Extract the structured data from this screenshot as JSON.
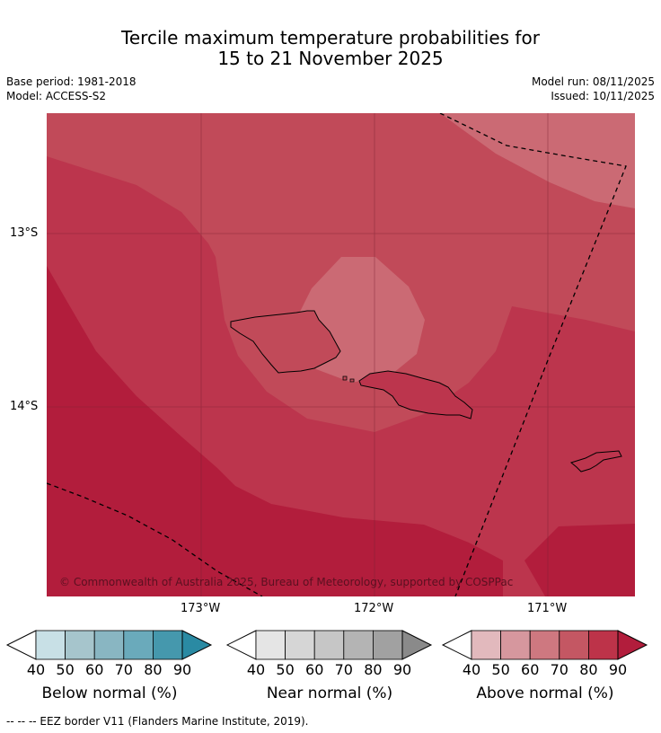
{
  "title_line1": "Tercile maximum temperature probabilities for",
  "title_line2": "15 to 21 November 2025",
  "base_period": "Base period: 1981-2018",
  "model": "Model: ACCESS-S2",
  "model_run": "Model run: 08/11/2025",
  "issued": "Issued: 10/11/2025",
  "lat_labels": [
    "13°S",
    "14°S"
  ],
  "lon_labels": [
    "173°W",
    "172°W",
    "171°W"
  ],
  "copyright": "© Commonwealth of Australia 2025, Bureau of Meteorology, supported by COSPPac",
  "legends": [
    {
      "label": "Below normal (%)",
      "colors": [
        "#c8e0e6",
        "#a6c5cc",
        "#89b6c2",
        "#6aaabb",
        "#4598ad",
        "#2a8aa3"
      ],
      "ticks": [
        "40",
        "50",
        "60",
        "70",
        "80",
        "90"
      ]
    },
    {
      "label": "Near normal (%)",
      "colors": [
        "#e5e5e5",
        "#d6d6d6",
        "#c6c6c6",
        "#b4b4b4",
        "#a1a1a1",
        "#8a8a8a"
      ],
      "ticks": [
        "40",
        "50",
        "60",
        "70",
        "80",
        "90"
      ]
    },
    {
      "label": "Above normal (%)",
      "colors": [
        "#e2b9bd",
        "#d6979e",
        "#ce7880",
        "#c45763",
        "#bd3349",
        "#b21d3c"
      ],
      "ticks": [
        "40",
        "50",
        "60",
        "70",
        "80",
        "90"
      ]
    }
  ],
  "footer": "--  --  -- EEZ border V11 (Flanders Marine Institute, 2019).",
  "map_colors": {
    "p60": "#cb6a74",
    "p70": "#c14a59",
    "p80": "#bc354d",
    "p90": "#b21d3c"
  }
}
